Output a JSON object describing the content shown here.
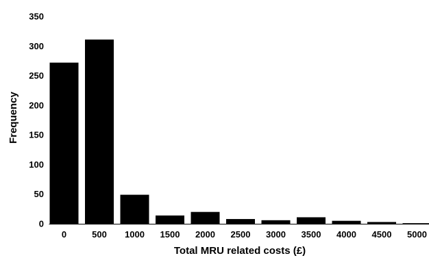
{
  "chart_data": {
    "type": "bar",
    "title": "",
    "xlabel": "Total MRU related costs (£)",
    "ylabel": "Frequency",
    "categories": [
      "0",
      "500",
      "1000",
      "1500",
      "2000",
      "2500",
      "3000",
      "3500",
      "4000",
      "4500",
      "5000"
    ],
    "values": [
      272,
      311,
      49,
      14,
      20,
      8,
      6,
      11,
      5,
      3,
      1
    ],
    "ylim": [
      0,
      350
    ],
    "yticks": [
      0,
      50,
      100,
      150,
      200,
      250,
      300,
      350
    ],
    "grid": false,
    "legend": "none",
    "bar_color": "#000000"
  }
}
